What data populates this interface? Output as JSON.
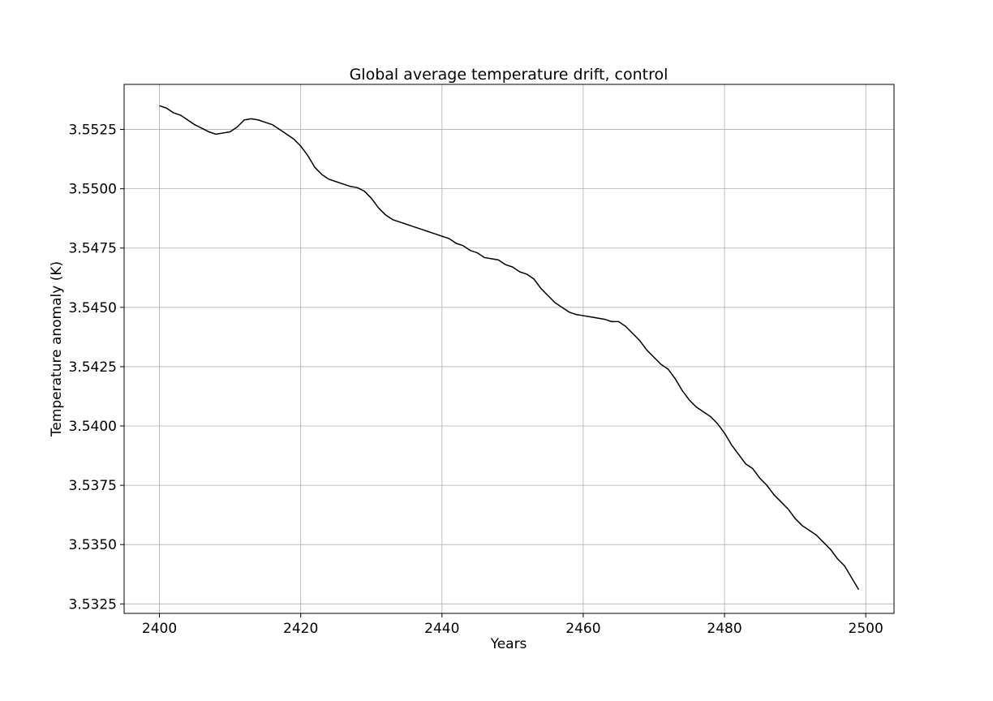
{
  "chart_data": {
    "type": "line",
    "title": "Global average temperature drift, control",
    "xlabel": "Years",
    "ylabel": "Temperature anomaly (K)",
    "xlim": [
      2395,
      2504
    ],
    "ylim": [
      3.5321,
      3.5544
    ],
    "xticks": [
      2400,
      2420,
      2440,
      2460,
      2480,
      2500
    ],
    "xtick_labels": [
      "2400",
      "2420",
      "2440",
      "2460",
      "2480",
      "2500"
    ],
    "yticks": [
      3.5325,
      3.535,
      3.5375,
      3.54,
      3.5425,
      3.545,
      3.5475,
      3.55,
      3.5525
    ],
    "ytick_labels": [
      "3.5325",
      "3.5350",
      "3.5375",
      "3.5400",
      "3.5425",
      "3.5450",
      "3.5475",
      "3.5500",
      "3.5525"
    ],
    "grid": true,
    "color": "#000000",
    "x": [
      2400,
      2401,
      2402,
      2403,
      2404,
      2405,
      2406,
      2407,
      2408,
      2409,
      2410,
      2411,
      2412,
      2413,
      2414,
      2415,
      2416,
      2417,
      2418,
      2419,
      2420,
      2421,
      2422,
      2423,
      2424,
      2425,
      2426,
      2427,
      2428,
      2429,
      2430,
      2431,
      2432,
      2433,
      2434,
      2435,
      2436,
      2437,
      2438,
      2439,
      2440,
      2441,
      2442,
      2443,
      2444,
      2445,
      2446,
      2447,
      2448,
      2449,
      2450,
      2451,
      2452,
      2453,
      2454,
      2455,
      2456,
      2457,
      2458,
      2459,
      2460,
      2461,
      2462,
      2463,
      2464,
      2465,
      2466,
      2467,
      2468,
      2469,
      2470,
      2471,
      2472,
      2473,
      2474,
      2475,
      2476,
      2477,
      2478,
      2479,
      2480,
      2481,
      2482,
      2483,
      2484,
      2485,
      2486,
      2487,
      2488,
      2489,
      2490,
      2491,
      2492,
      2493,
      2494,
      2495,
      2496,
      2497,
      2498,
      2499
    ],
    "y": [
      3.5535,
      3.5534,
      3.5532,
      3.5531,
      3.5529,
      3.5527,
      3.55255,
      3.5524,
      3.5523,
      3.55235,
      3.5524,
      3.5526,
      3.5529,
      3.55295,
      3.5529,
      3.5528,
      3.5527,
      3.5525,
      3.5523,
      3.5521,
      3.5518,
      3.5514,
      3.5509,
      3.5506,
      3.5504,
      3.5503,
      3.5502,
      3.5501,
      3.55005,
      3.5499,
      3.5496,
      3.5492,
      3.5489,
      3.5487,
      3.5486,
      3.5485,
      3.5484,
      3.5483,
      3.5482,
      3.5481,
      3.548,
      3.5479,
      3.5477,
      3.5476,
      3.5474,
      3.5473,
      3.5471,
      3.54705,
      3.547,
      3.5468,
      3.5467,
      3.5465,
      3.5464,
      3.5462,
      3.5458,
      3.5455,
      3.5452,
      3.545,
      3.5448,
      3.5447,
      3.54465,
      3.5446,
      3.54455,
      3.5445,
      3.5444,
      3.5444,
      3.5442,
      3.5439,
      3.5436,
      3.5432,
      3.5429,
      3.5426,
      3.5424,
      3.542,
      3.5415,
      3.5411,
      3.5408,
      3.5406,
      3.5404,
      3.5401,
      3.5397,
      3.5392,
      3.5388,
      3.5384,
      3.5382,
      3.5378,
      3.5375,
      3.5371,
      3.5368,
      3.5365,
      3.5361,
      3.5358,
      3.5356,
      3.5354,
      3.5351,
      3.5348,
      3.5344,
      3.5341,
      3.5336,
      3.5331
    ]
  }
}
